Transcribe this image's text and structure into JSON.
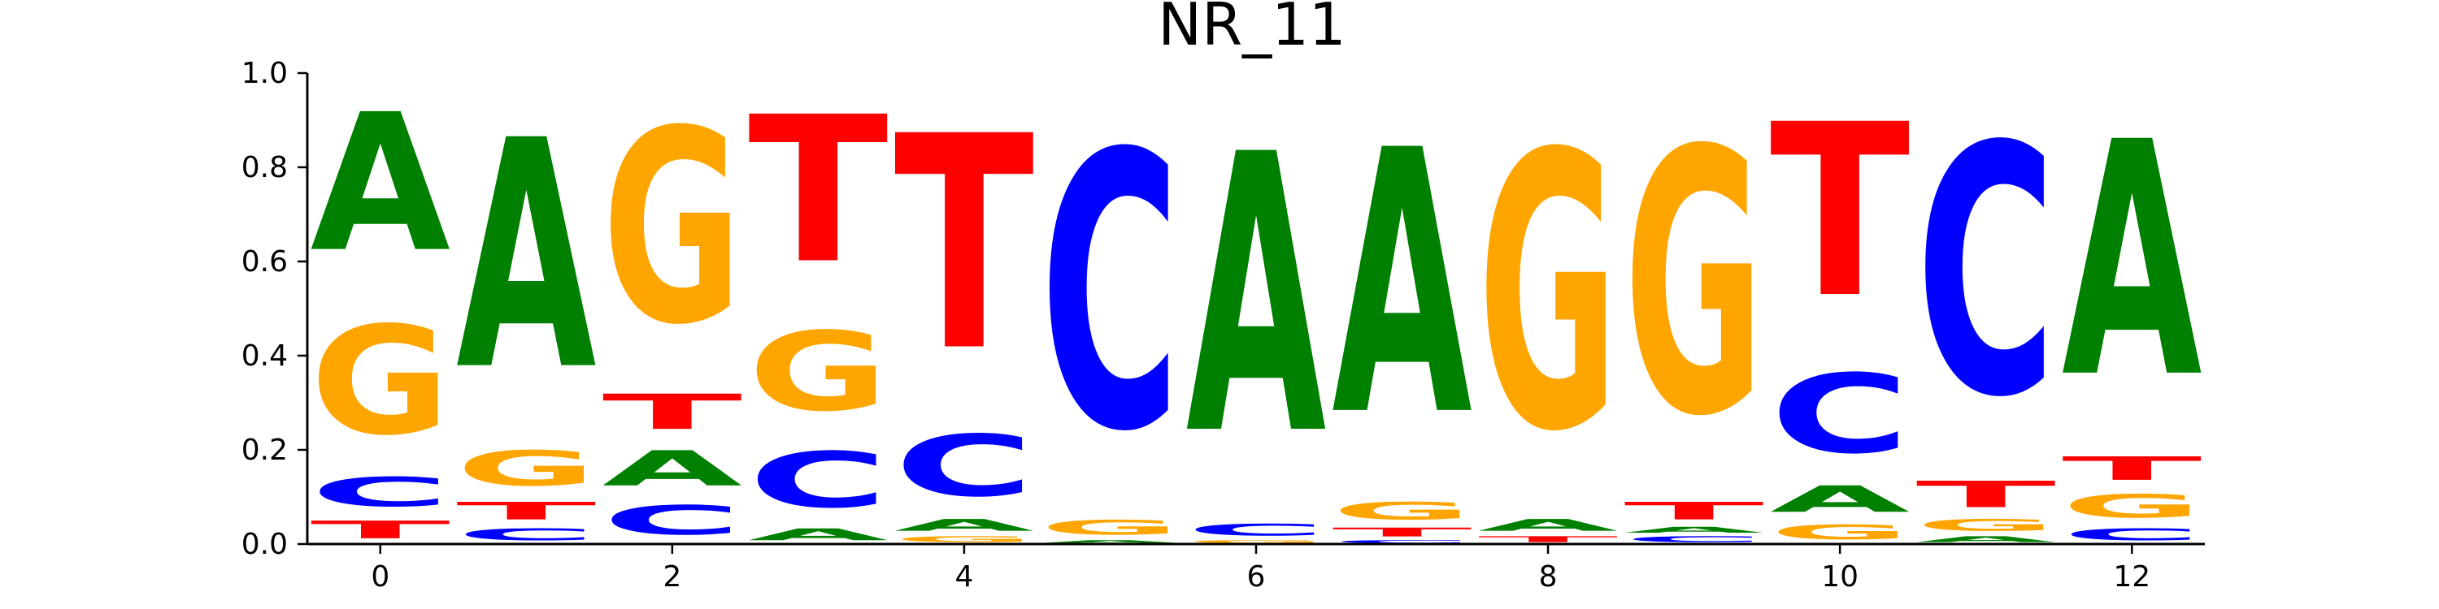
{
  "chart_data": {
    "type": "sequence-logo",
    "title": "NR_11",
    "xlabel": "",
    "ylabel": "",
    "ylim": [
      0,
      1
    ],
    "yticks": [
      "0.0",
      "0.2",
      "0.4",
      "0.6",
      "0.8",
      "1.0"
    ],
    "ytick_values": [
      0,
      0.2,
      0.4,
      0.6,
      0.8,
      1.0
    ],
    "xticks": [
      "0",
      "2",
      "4",
      "6",
      "8",
      "10",
      "12"
    ],
    "xtick_values": [
      0,
      2,
      4,
      6,
      8,
      10,
      12
    ],
    "colors": {
      "A": "#008000",
      "C": "#0000ff",
      "G": "#ffa500",
      "T": "#ff0000"
    },
    "positions": [
      {
        "pos": 0,
        "stack": [
          [
            "T",
            0.06
          ],
          [
            "C",
            0.1
          ],
          [
            "G",
            0.37
          ],
          [
            "A",
            0.47
          ]
        ]
      },
      {
        "pos": 1,
        "stack": [
          [
            "C",
            0.04
          ],
          [
            "T",
            0.06
          ],
          [
            "G",
            0.12
          ],
          [
            "A",
            0.78
          ]
        ]
      },
      {
        "pos": 2,
        "stack": [
          [
            "C",
            0.1
          ],
          [
            "A",
            0.12
          ],
          [
            "T",
            0.12
          ],
          [
            "G",
            0.66
          ]
        ]
      },
      {
        "pos": 3,
        "stack": [
          [
            "A",
            0.04
          ],
          [
            "C",
            0.19
          ],
          [
            "G",
            0.27
          ],
          [
            "T",
            0.5
          ]
        ]
      },
      {
        "pos": 4,
        "stack": [
          [
            "G",
            0.02
          ],
          [
            "A",
            0.04
          ],
          [
            "C",
            0.21
          ],
          [
            "T",
            0.73
          ]
        ]
      },
      {
        "pos": 5,
        "stack": [
          [
            "A",
            0.01
          ],
          [
            "G",
            0.05
          ],
          [
            "C",
            0.94
          ]
        ]
      },
      {
        "pos": 6,
        "stack": [
          [
            "G",
            0.01
          ],
          [
            "C",
            0.04
          ],
          [
            "A",
            0.95
          ]
        ]
      },
      {
        "pos": 7,
        "stack": [
          [
            "C",
            0.01
          ],
          [
            "T",
            0.03
          ],
          [
            "G",
            0.06
          ],
          [
            "A",
            0.9
          ]
        ]
      },
      {
        "pos": 8,
        "stack": [
          [
            "T",
            0.02
          ],
          [
            "A",
            0.04
          ],
          [
            "G",
            0.94
          ]
        ]
      },
      {
        "pos": 9,
        "stack": [
          [
            "C",
            0.02
          ],
          [
            "A",
            0.02
          ],
          [
            "T",
            0.06
          ],
          [
            "G",
            0.9
          ]
        ]
      },
      {
        "pos": 10,
        "stack": [
          [
            "G",
            0.05
          ],
          [
            "A",
            0.09
          ],
          [
            "C",
            0.27
          ],
          [
            "T",
            0.59
          ]
        ]
      },
      {
        "pos": 11,
        "stack": [
          [
            "A",
            0.02
          ],
          [
            "G",
            0.04
          ],
          [
            "T",
            0.09
          ],
          [
            "C",
            0.85
          ]
        ]
      },
      {
        "pos": 12,
        "stack": [
          [
            "C",
            0.04
          ],
          [
            "G",
            0.08
          ],
          [
            "T",
            0.08
          ],
          [
            "A",
            0.8
          ]
        ]
      }
    ]
  }
}
